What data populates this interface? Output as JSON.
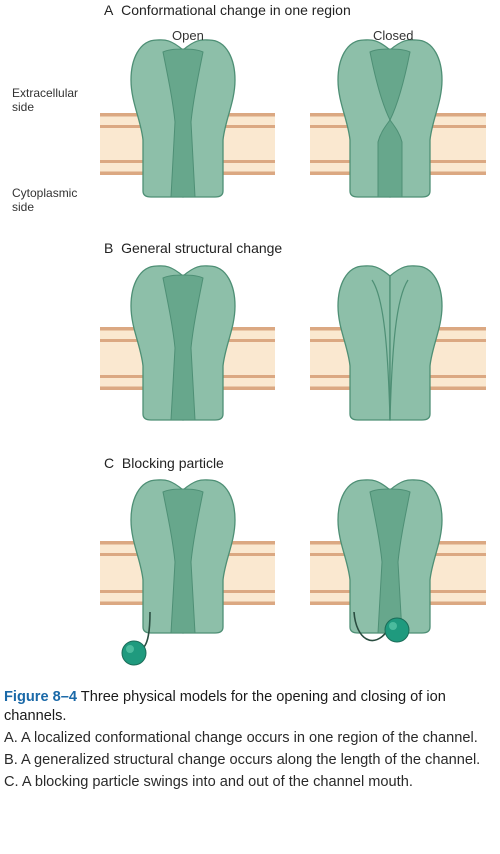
{
  "colors": {
    "protein_fill": "#8dbfa9",
    "protein_stroke": "#4e8f75",
    "pore_fill": "#67a78c",
    "membrane_fill": "#fae8d0",
    "membrane_line": "#dba882",
    "particle_fill": "#1f9a7e",
    "figure_label": "#1a69a8"
  },
  "icons": [
    "ion-channel",
    "blocking-particle"
  ],
  "panels": [
    {
      "letter": "A",
      "title": "Conformational change in one region",
      "open_label": "Open",
      "closed_label": "Closed"
    },
    {
      "letter": "B",
      "title": "General structural change"
    },
    {
      "letter": "C",
      "title": "Blocking particle"
    }
  ],
  "side_labels": {
    "extracellular": "Extracellular\nside",
    "cytoplasmic": "Cytoplasmic\nside"
  },
  "caption": {
    "figure_label": "Figure 8–4",
    "title": "Three physical models for the opening and closing of ion channels.",
    "items": [
      "A. A localized conformational change occurs in one region of the channel.",
      "B. A generalized structural change occurs along the length of the channel.",
      "C. A blocking particle swings into and out of the channel mouth."
    ]
  }
}
